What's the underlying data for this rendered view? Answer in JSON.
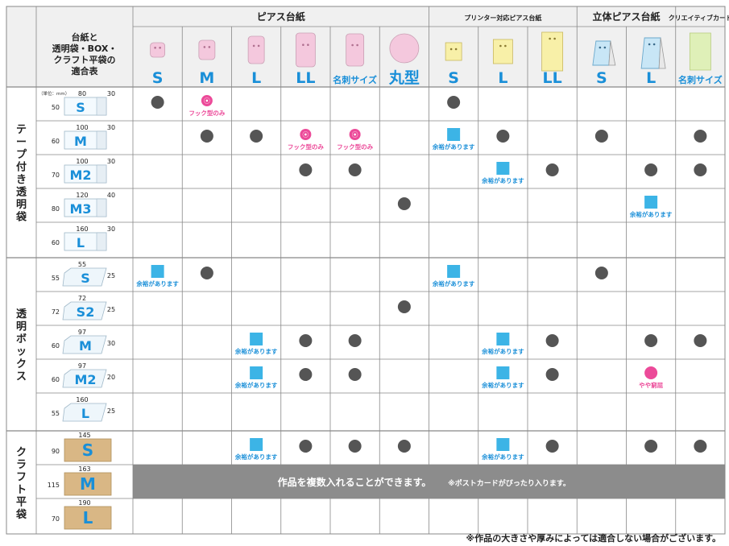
{
  "title": "透明袋・BOX・クラフト平袋の適合表",
  "header_cell_lines": [
    "台紙と",
    "透明袋・BOX・",
    "クラフト平袋の",
    "適合表"
  ],
  "colors": {
    "blue": "#1a8fd8",
    "pink": "#ec4a99",
    "gray": "#555555",
    "cyan": "#3cb4e6",
    "banner": "#8c8c8c",
    "header_bg": "#f0f0f0",
    "line": "#888888"
  },
  "groups": [
    {
      "label": "ピアス台紙",
      "span": 6
    },
    {
      "label": "プリンター対応ピアス台紙",
      "span": 3
    },
    {
      "label": "立体ピアス台紙",
      "span": 2
    },
    {
      "label": "クリエイティブカード",
      "span": 1
    }
  ],
  "columns": [
    {
      "size": "S",
      "shape": "pierce-s",
      "fill": "#f4c8dd"
    },
    {
      "size": "M",
      "shape": "pierce-m",
      "fill": "#f4c8dd"
    },
    {
      "size": "L",
      "shape": "pierce-l",
      "fill": "#f4c8dd"
    },
    {
      "size": "LL",
      "shape": "pierce-ll",
      "fill": "#f4c8dd"
    },
    {
      "size": "名刺サイズ",
      "shape": "pierce-card",
      "fill": "#f4c8dd"
    },
    {
      "size": "丸型",
      "shape": "circle",
      "fill": "#f4c8dd"
    },
    {
      "size": "S",
      "shape": "printer-s",
      "fill": "#f8f0a8"
    },
    {
      "size": "L",
      "shape": "printer-l",
      "fill": "#f8f0a8"
    },
    {
      "size": "LL",
      "shape": "printer-ll",
      "fill": "#f8f0a8"
    },
    {
      "size": "S",
      "shape": "stand-s",
      "fill": "#c8e6f6"
    },
    {
      "size": "L",
      "shape": "stand-l",
      "fill": "#c8e6f6"
    },
    {
      "size": "名刺サイズ",
      "shape": "creative",
      "fill": "#dff0b8"
    }
  ],
  "unit_label": "（単位：mm）",
  "sections": [
    {
      "label": "テープ付き透明袋",
      "rows": [
        {
          "name": "S",
          "h": "50",
          "w": "80",
          "flap": "30",
          "cells": [
            "dot",
            "",
            "",
            "",
            "",
            "",
            "dot",
            "",
            "",
            "",
            "",
            ""
          ],
          "notes": [
            "",
            "fook",
            "",
            "",
            "",
            "",
            "",
            "",
            "",
            "",
            "",
            ""
          ],
          "extra": [
            1
          ]
        },
        {
          "name": "M",
          "h": "60",
          "w": "100",
          "flap": "30",
          "cells": [
            "",
            "dot",
            "dot",
            "fook",
            "fook",
            "",
            "sq",
            "dot",
            "",
            "dot",
            "",
            "dot"
          ],
          "notes": [],
          "extra": []
        },
        {
          "name": "M2",
          "h": "70",
          "w": "100",
          "flap": "30",
          "cells": [
            "",
            "",
            "",
            "dot",
            "dot",
            "",
            "",
            "sq",
            "dot",
            "",
            "dot",
            "dot"
          ],
          "notes": [],
          "extra": []
        },
        {
          "name": "M3",
          "h": "80",
          "w": "120",
          "flap": "40",
          "cells": [
            "",
            "",
            "",
            "",
            "",
            "dot",
            "",
            "",
            "",
            "",
            "sq",
            ""
          ],
          "notes": [],
          "extra": []
        },
        {
          "name": "L",
          "h": "60",
          "w": "160",
          "flap": "30",
          "cells": [
            "",
            "",
            "",
            "",
            "",
            "",
            "",
            "",
            "",
            "",
            "",
            ""
          ],
          "notes": [],
          "extra": []
        }
      ]
    },
    {
      "label": "透明ボックス",
      "rows": [
        {
          "name": "S",
          "h": "55",
          "w": "55",
          "flap": "25",
          "cells": [
            "sq",
            "dot",
            "",
            "",
            "",
            "",
            "sq",
            "",
            "",
            "dot",
            "",
            ""
          ]
        },
        {
          "name": "S2",
          "h": "72",
          "w": "72",
          "flap": "25",
          "cells": [
            "",
            "",
            "",
            "",
            "",
            "dot",
            "",
            "",
            "",
            "",
            "",
            ""
          ]
        },
        {
          "name": "M",
          "h": "60",
          "w": "97",
          "flap": "30",
          "cells": [
            "",
            "",
            "sq",
            "dot",
            "dot",
            "",
            "",
            "sq",
            "dot",
            "",
            "dot",
            "dot"
          ]
        },
        {
          "name": "M2",
          "h": "60",
          "w": "97",
          "flap": "20",
          "cells": [
            "",
            "",
            "sq",
            "dot",
            "dot",
            "",
            "",
            "sq",
            "dot",
            "",
            "pink",
            ""
          ]
        },
        {
          "name": "L",
          "h": "55",
          "w": "160",
          "flap": "25",
          "cells": [
            "",
            "",
            "",
            "",
            "",
            "",
            "",
            "",
            "",
            "",
            "",
            ""
          ]
        }
      ]
    },
    {
      "label": "クラフト平袋",
      "rows": [
        {
          "name": "S",
          "h": "90",
          "w": "145",
          "flap": "",
          "cells": [
            "",
            "",
            "sq",
            "dot",
            "dot",
            "dot",
            "",
            "sq",
            "dot",
            "",
            "dot",
            "dot"
          ]
        },
        {
          "name": "M",
          "h": "115",
          "w": "163",
          "flap": "",
          "cells": [],
          "banner": true
        },
        {
          "name": "L",
          "h": "70",
          "w": "190",
          "flap": "",
          "cells": [
            "",
            "",
            "",
            "",
            "",
            "",
            "",
            "",
            "",
            "",
            "",
            ""
          ]
        }
      ]
    }
  ],
  "labels": {
    "fook": "フック型のみ",
    "sq": "余裕があります",
    "pink": "やや窮屈"
  },
  "banner_main": "作品を複数入れることができます。",
  "banner_sub": "※ポストカードがぴったり入ります。",
  "footnote": "※作品の大きさや厚みによっては適合しない場合がございます。"
}
